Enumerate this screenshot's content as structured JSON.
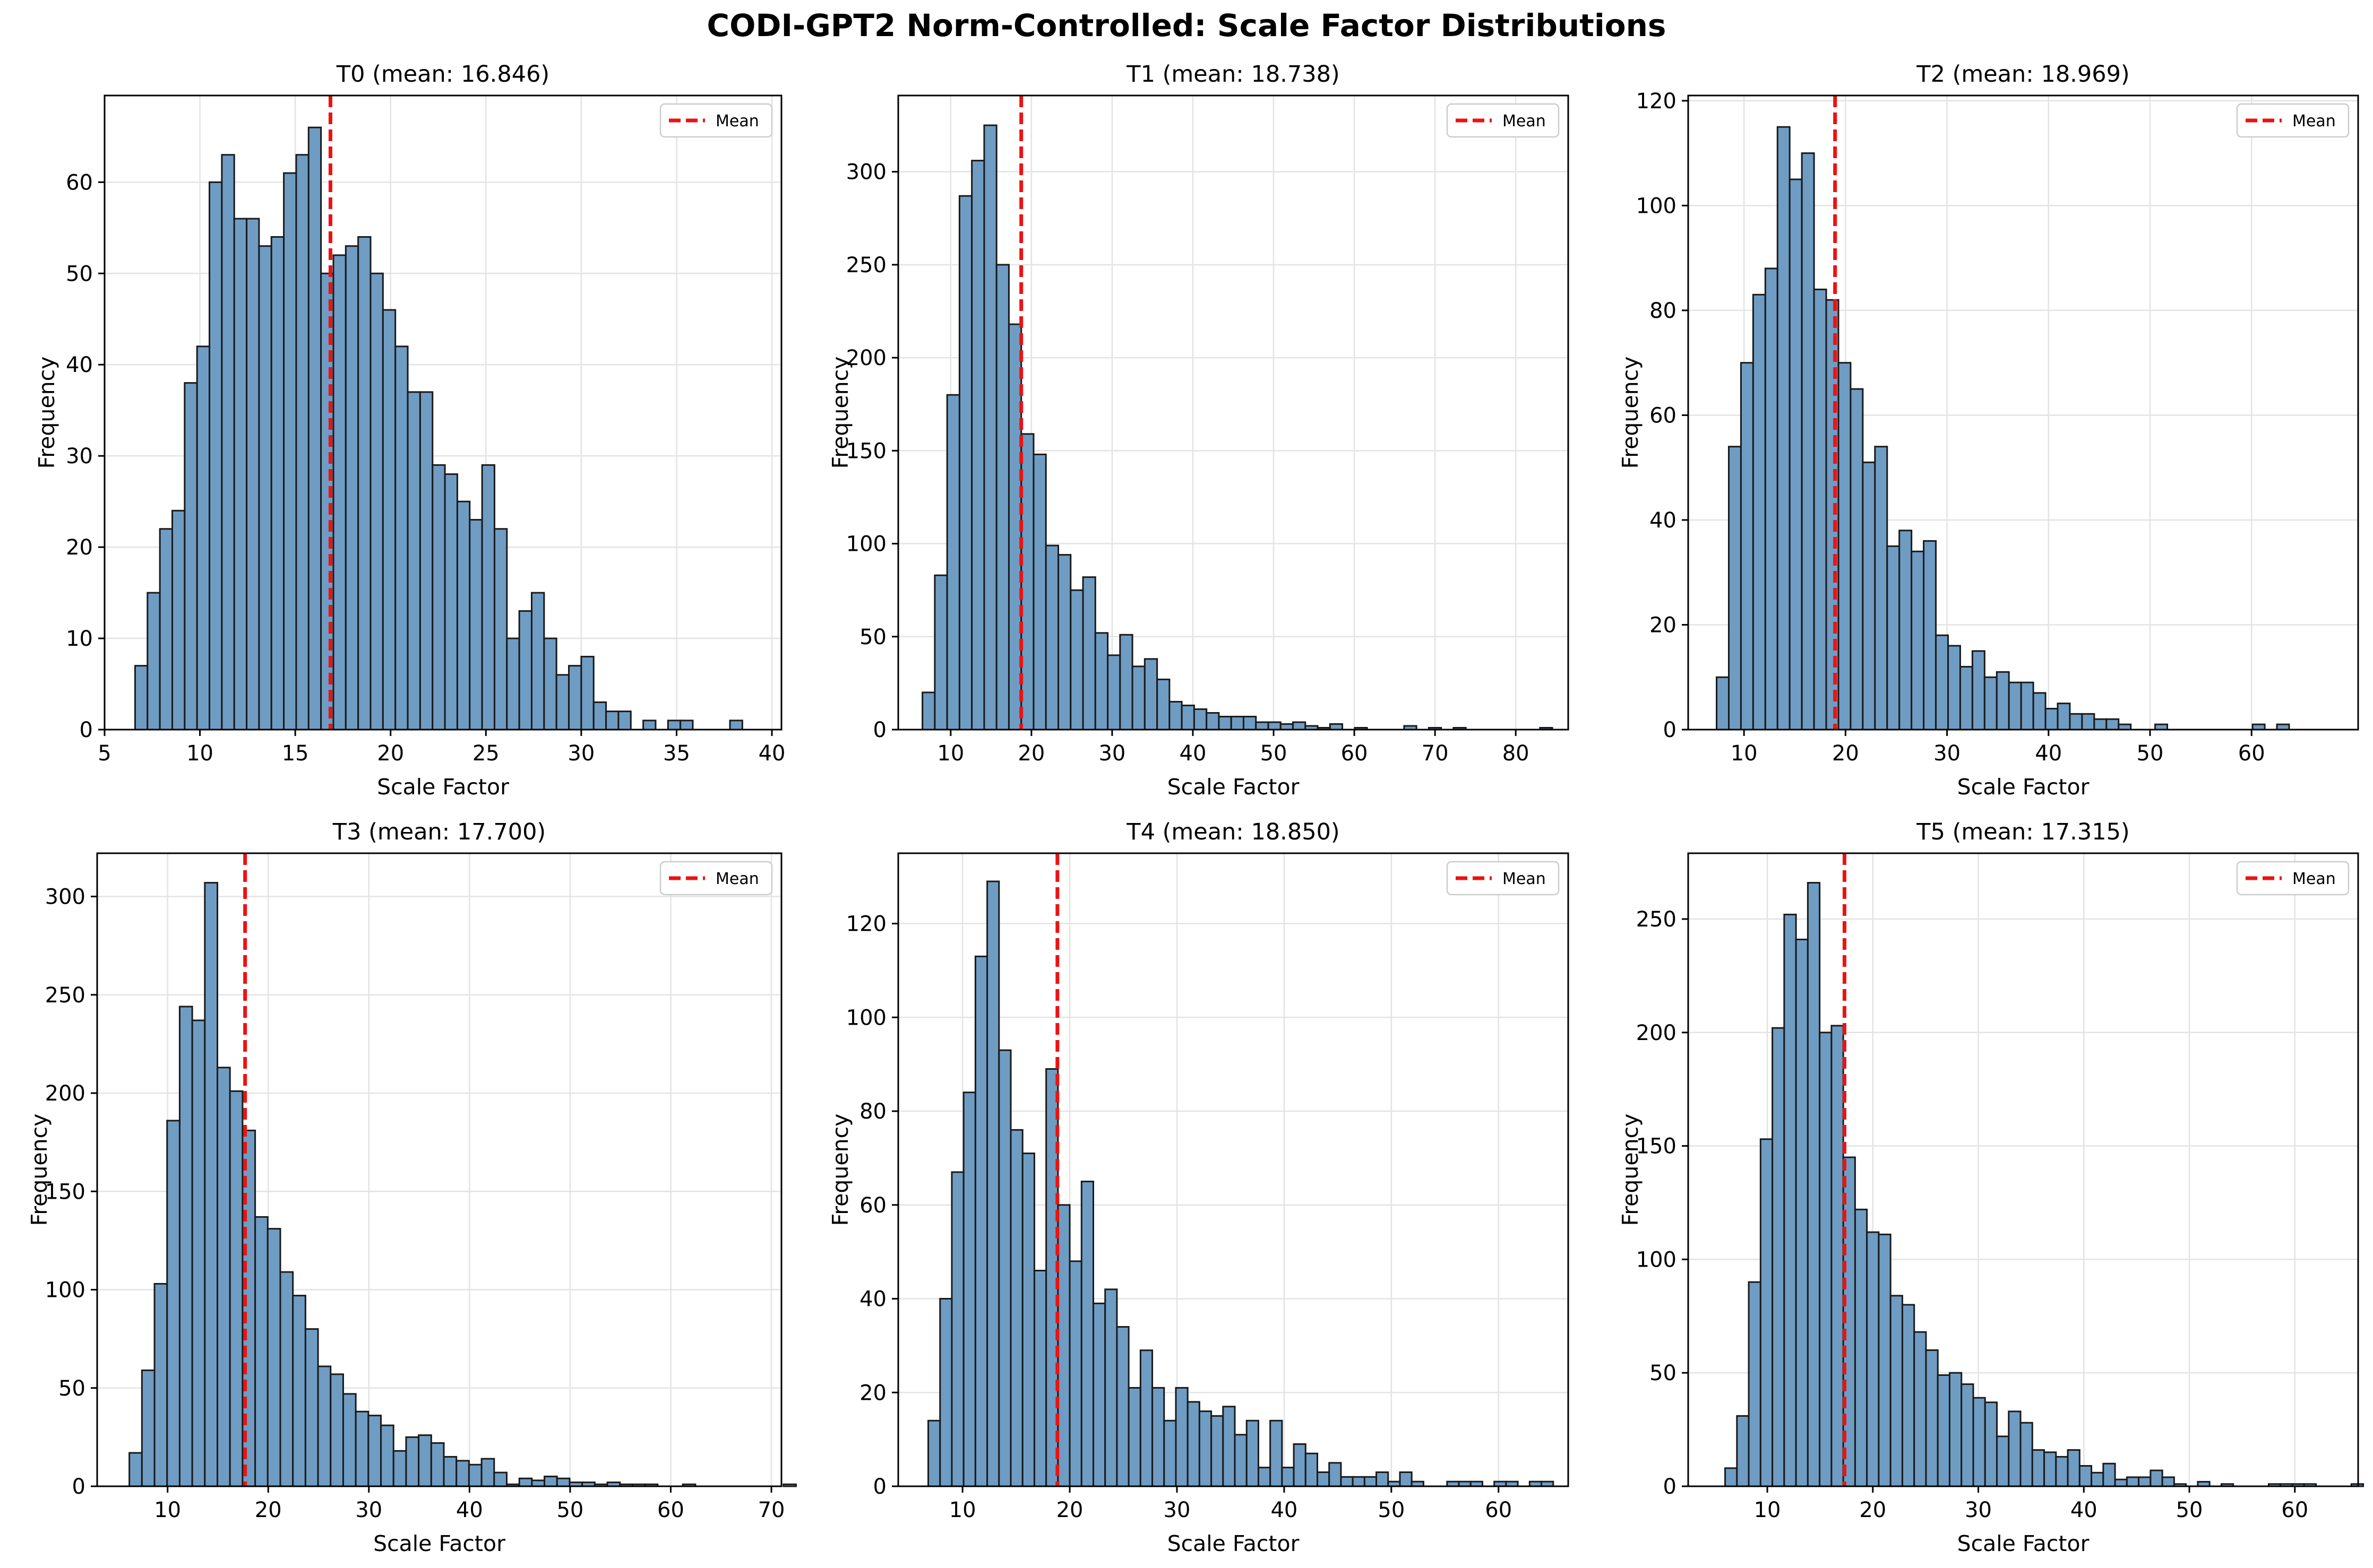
{
  "figure_title": "CODI-GPT2 Norm-Controlled: Scale Factor Distributions",
  "colors": {
    "bar_fill": "#6f9cc3",
    "bar_edge": "#1a1a1a",
    "mean_line": "#ee1111",
    "grid": "#e3e3e3"
  },
  "chart_data": [
    {
      "type": "bar",
      "title": "T0 (mean: 16.846)",
      "xlabel": "Scale Factor",
      "ylabel": "Frequency",
      "xlim": [
        5,
        40.5
      ],
      "ylim": [
        0,
        69.5
      ],
      "xticks": [
        5,
        10,
        15,
        20,
        25,
        30,
        35,
        40
      ],
      "yticks": [
        0,
        10,
        20,
        30,
        40,
        50,
        60
      ],
      "bin_start": 6.6,
      "bin_width": 0.65,
      "counts": [
        7,
        15,
        22,
        24,
        38,
        42,
        60,
        63,
        56,
        56,
        53,
        54,
        61,
        63,
        66,
        50,
        52,
        53,
        54,
        50,
        46,
        42,
        37,
        37,
        29,
        28,
        25,
        23,
        29,
        22,
        10,
        13,
        15,
        10,
        6,
        7,
        8,
        3,
        2,
        2,
        0,
        1,
        0,
        1,
        1,
        0,
        0,
        0,
        1
      ],
      "mean": 16.846,
      "legend": {
        "label": "Mean",
        "position": "upper right"
      },
      "grid": true
    },
    {
      "type": "bar",
      "title": "T1 (mean: 18.738)",
      "xlabel": "Scale Factor",
      "ylabel": "Frequency",
      "xlim": [
        3.5,
        86.5
      ],
      "ylim": [
        0,
        341
      ],
      "xticks": [
        10,
        20,
        30,
        40,
        50,
        60,
        70,
        80
      ],
      "yticks": [
        0,
        50,
        100,
        150,
        200,
        250,
        300
      ],
      "bin_start": 6.5,
      "bin_width": 1.53,
      "counts": [
        20,
        83,
        180,
        287,
        306,
        325,
        250,
        218,
        159,
        148,
        99,
        94,
        75,
        82,
        52,
        40,
        51,
        34,
        38,
        27,
        15,
        13,
        11,
        9,
        7,
        7,
        7,
        4,
        4,
        3,
        4,
        2,
        1,
        3,
        0,
        1,
        0,
        0,
        0,
        2,
        0,
        1,
        0,
        1,
        0,
        0,
        0,
        0,
        0,
        0,
        1
      ],
      "mean": 18.738,
      "legend": {
        "label": "Mean",
        "position": "upper right"
      },
      "grid": true
    },
    {
      "type": "bar",
      "title": "T2 (mean: 18.969)",
      "xlabel": "Scale Factor",
      "ylabel": "Frequency",
      "xlim": [
        4.5,
        70.5
      ],
      "ylim": [
        0,
        121
      ],
      "xticks": [
        10,
        20,
        30,
        40,
        50,
        60
      ],
      "yticks": [
        0,
        20,
        40,
        60,
        80,
        100,
        120
      ],
      "bin_start": 7.3,
      "bin_width": 1.2,
      "counts": [
        10,
        54,
        70,
        83,
        88,
        115,
        105,
        110,
        84,
        82,
        70,
        65,
        51,
        54,
        35,
        38,
        34,
        36,
        18,
        16,
        12,
        15,
        10,
        11,
        9,
        9,
        7,
        4,
        5,
        3,
        3,
        2,
        2,
        1,
        0,
        0,
        1,
        0,
        0,
        0,
        0,
        0,
        0,
        0,
        1,
        0,
        1,
        0,
        0,
        0,
        0,
        0,
        0,
        0,
        0,
        1
      ],
      "mean": 18.969,
      "legend": {
        "label": "Mean",
        "position": "upper right"
      },
      "grid": true
    },
    {
      "type": "bar",
      "title": "T3 (mean: 17.700)",
      "xlabel": "Scale Factor",
      "ylabel": "Frequency",
      "xlim": [
        3,
        71
      ],
      "ylim": [
        0,
        322
      ],
      "xticks": [
        10,
        20,
        30,
        40,
        50,
        60,
        70
      ],
      "yticks": [
        0,
        50,
        100,
        150,
        200,
        250,
        300
      ],
      "bin_start": 6.2,
      "bin_width": 1.25,
      "counts": [
        17,
        59,
        103,
        186,
        244,
        237,
        307,
        213,
        201,
        181,
        137,
        131,
        109,
        97,
        80,
        61,
        57,
        47,
        38,
        36,
        31,
        18,
        25,
        26,
        22,
        15,
        13,
        11,
        14,
        7,
        1,
        4,
        3,
        5,
        4,
        2,
        2,
        1,
        2,
        1,
        1,
        1,
        0,
        0,
        1,
        0,
        0,
        0,
        0,
        0,
        0,
        0,
        1
      ],
      "mean": 17.7,
      "legend": {
        "label": "Mean",
        "position": "upper right"
      },
      "grid": true
    },
    {
      "type": "bar",
      "title": "T4 (mean: 18.850)",
      "xlabel": "Scale Factor",
      "ylabel": "Frequency",
      "xlim": [
        4,
        66.5
      ],
      "ylim": [
        0,
        135
      ],
      "xticks": [
        10,
        20,
        30,
        40,
        50,
        60
      ],
      "yticks": [
        0,
        20,
        40,
        60,
        80,
        100,
        120
      ],
      "bin_start": 6.8,
      "bin_width": 1.1,
      "counts": [
        14,
        40,
        67,
        84,
        113,
        129,
        93,
        76,
        71,
        46,
        89,
        60,
        48,
        65,
        39,
        42,
        34,
        21,
        29,
        21,
        14,
        21,
        18,
        16,
        15,
        17,
        11,
        14,
        4,
        14,
        4,
        9,
        7,
        3,
        5,
        2,
        2,
        2,
        3,
        1,
        3,
        1,
        0,
        0,
        1,
        1,
        1,
        0,
        1,
        1,
        0,
        1,
        1
      ],
      "mean": 18.85,
      "legend": {
        "label": "Mean",
        "position": "upper right"
      },
      "grid": true
    },
    {
      "type": "bar",
      "title": "T5 (mean: 17.315)",
      "xlabel": "Scale Factor",
      "ylabel": "Frequency",
      "xlim": [
        2.5,
        66
      ],
      "ylim": [
        0,
        279
      ],
      "xticks": [
        10,
        20,
        30,
        40,
        50,
        60
      ],
      "yticks": [
        0,
        50,
        100,
        150,
        200,
        250
      ],
      "bin_start": 6.0,
      "bin_width": 1.12,
      "counts": [
        8,
        31,
        90,
        153,
        202,
        252,
        241,
        266,
        200,
        203,
        145,
        122,
        112,
        111,
        84,
        80,
        68,
        60,
        49,
        50,
        45,
        39,
        37,
        22,
        33,
        28,
        16,
        15,
        13,
        16,
        9,
        6,
        10,
        3,
        4,
        4,
        7,
        4,
        1,
        0,
        2,
        0,
        1,
        0,
        0,
        0,
        1,
        1,
        1,
        1,
        0,
        0,
        0,
        1,
        0,
        1
      ],
      "mean": 17.315,
      "legend": {
        "label": "Mean",
        "position": "upper right"
      },
      "grid": true
    }
  ]
}
